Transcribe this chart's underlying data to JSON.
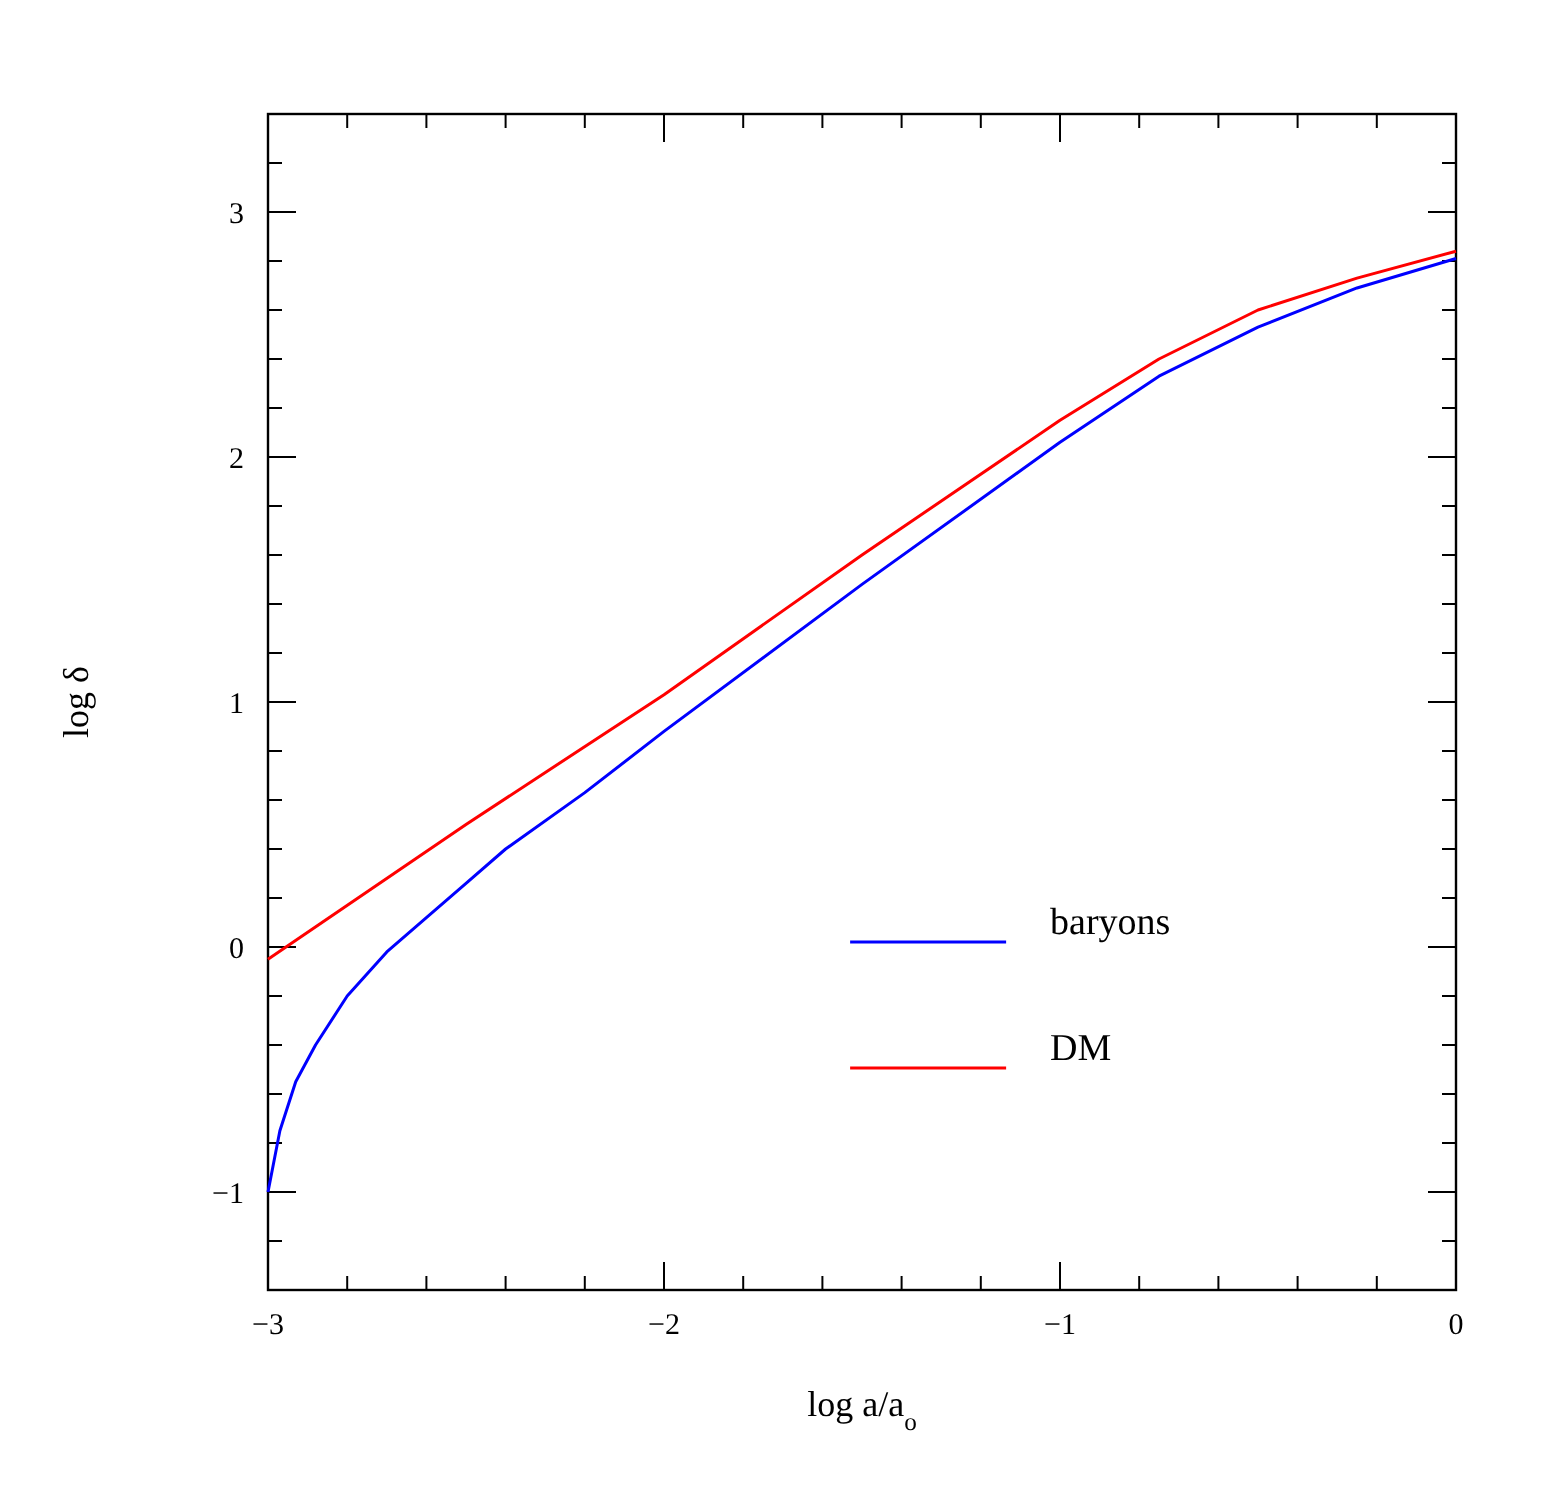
{
  "chart_data": {
    "type": "line",
    "xlabel": "log a/a$_{o}$",
    "ylabel": "log δ",
    "xlim": [
      -3,
      0
    ],
    "ylim": [
      -1.4,
      3.4
    ],
    "xticks": [
      -3,
      -2,
      -1,
      0
    ],
    "yticks": [
      -1,
      0,
      1,
      2,
      3
    ],
    "grid": false,
    "legend": "bottom right",
    "marker": "none",
    "line_style": "solid",
    "series": [
      {
        "name": "baryons",
        "color": "#0000ff",
        "x": [
          -3,
          -2.97,
          -2.93,
          -2.88,
          -2.8,
          -2.7,
          -2.6,
          -2.5,
          -2.4,
          -2.2,
          -2,
          -1.5,
          -1,
          -0.75,
          -0.5,
          -0.25,
          0
        ],
        "values": [
          -1.0,
          -0.75,
          -0.55,
          -0.4,
          -0.2,
          -0.02,
          0.12,
          0.26,
          0.4,
          0.63,
          0.88,
          1.48,
          2.06,
          2.33,
          2.53,
          2.69,
          2.81
        ]
      },
      {
        "name": "DM",
        "color": "#ff0000",
        "x": [
          -3,
          -2.5,
          -2,
          -1.5,
          -1,
          -0.75,
          -0.5,
          -0.25,
          0
        ],
        "values": [
          -0.05,
          0.5,
          1.03,
          1.6,
          2.15,
          2.4,
          2.6,
          2.73,
          2.84
        ]
      }
    ]
  }
}
